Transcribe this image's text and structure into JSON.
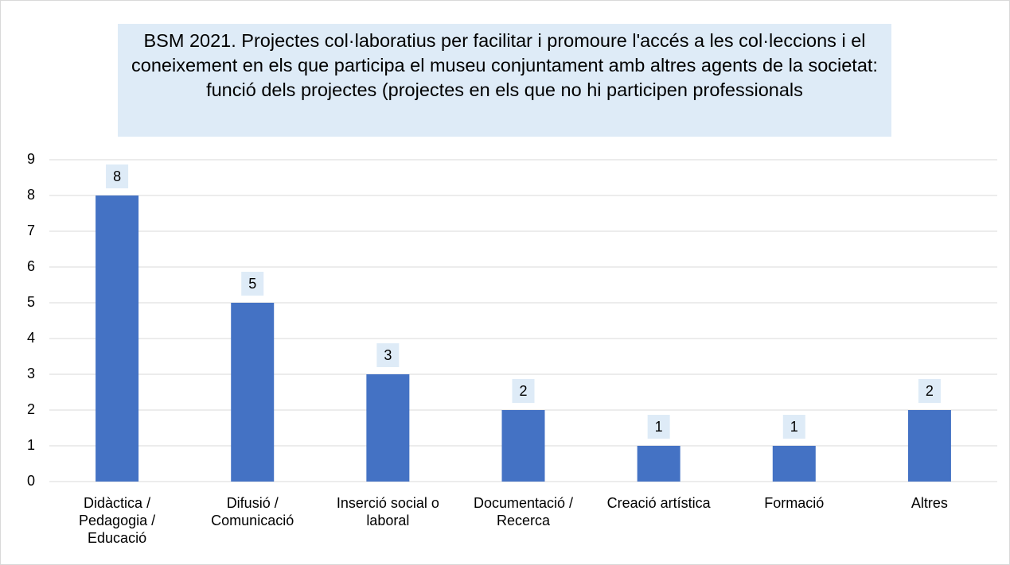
{
  "chart_data": {
    "type": "bar",
    "title": "BSM 2021. Projectes col·laboratius per facilitar i promoure l'accés a les col·leccions i el coneixement en els que participa el museu conjuntament amb altres agents de la societat: funció dels projectes (projectes en els que no hi participen professionals",
    "categories": [
      "Didàctica / Pedagogia / Educació",
      "Difusió / Comunicació",
      "Inserció social o laboral",
      "Documentació / Recerca",
      "Creació artística",
      "Formació",
      "Altres"
    ],
    "values": [
      8,
      5,
      3,
      2,
      1,
      1,
      2
    ],
    "color": "#4472c4",
    "ylim": [
      0,
      9
    ],
    "yticks": [
      0,
      1,
      2,
      3,
      4,
      5,
      6,
      7,
      8,
      9
    ],
    "grid": true
  }
}
